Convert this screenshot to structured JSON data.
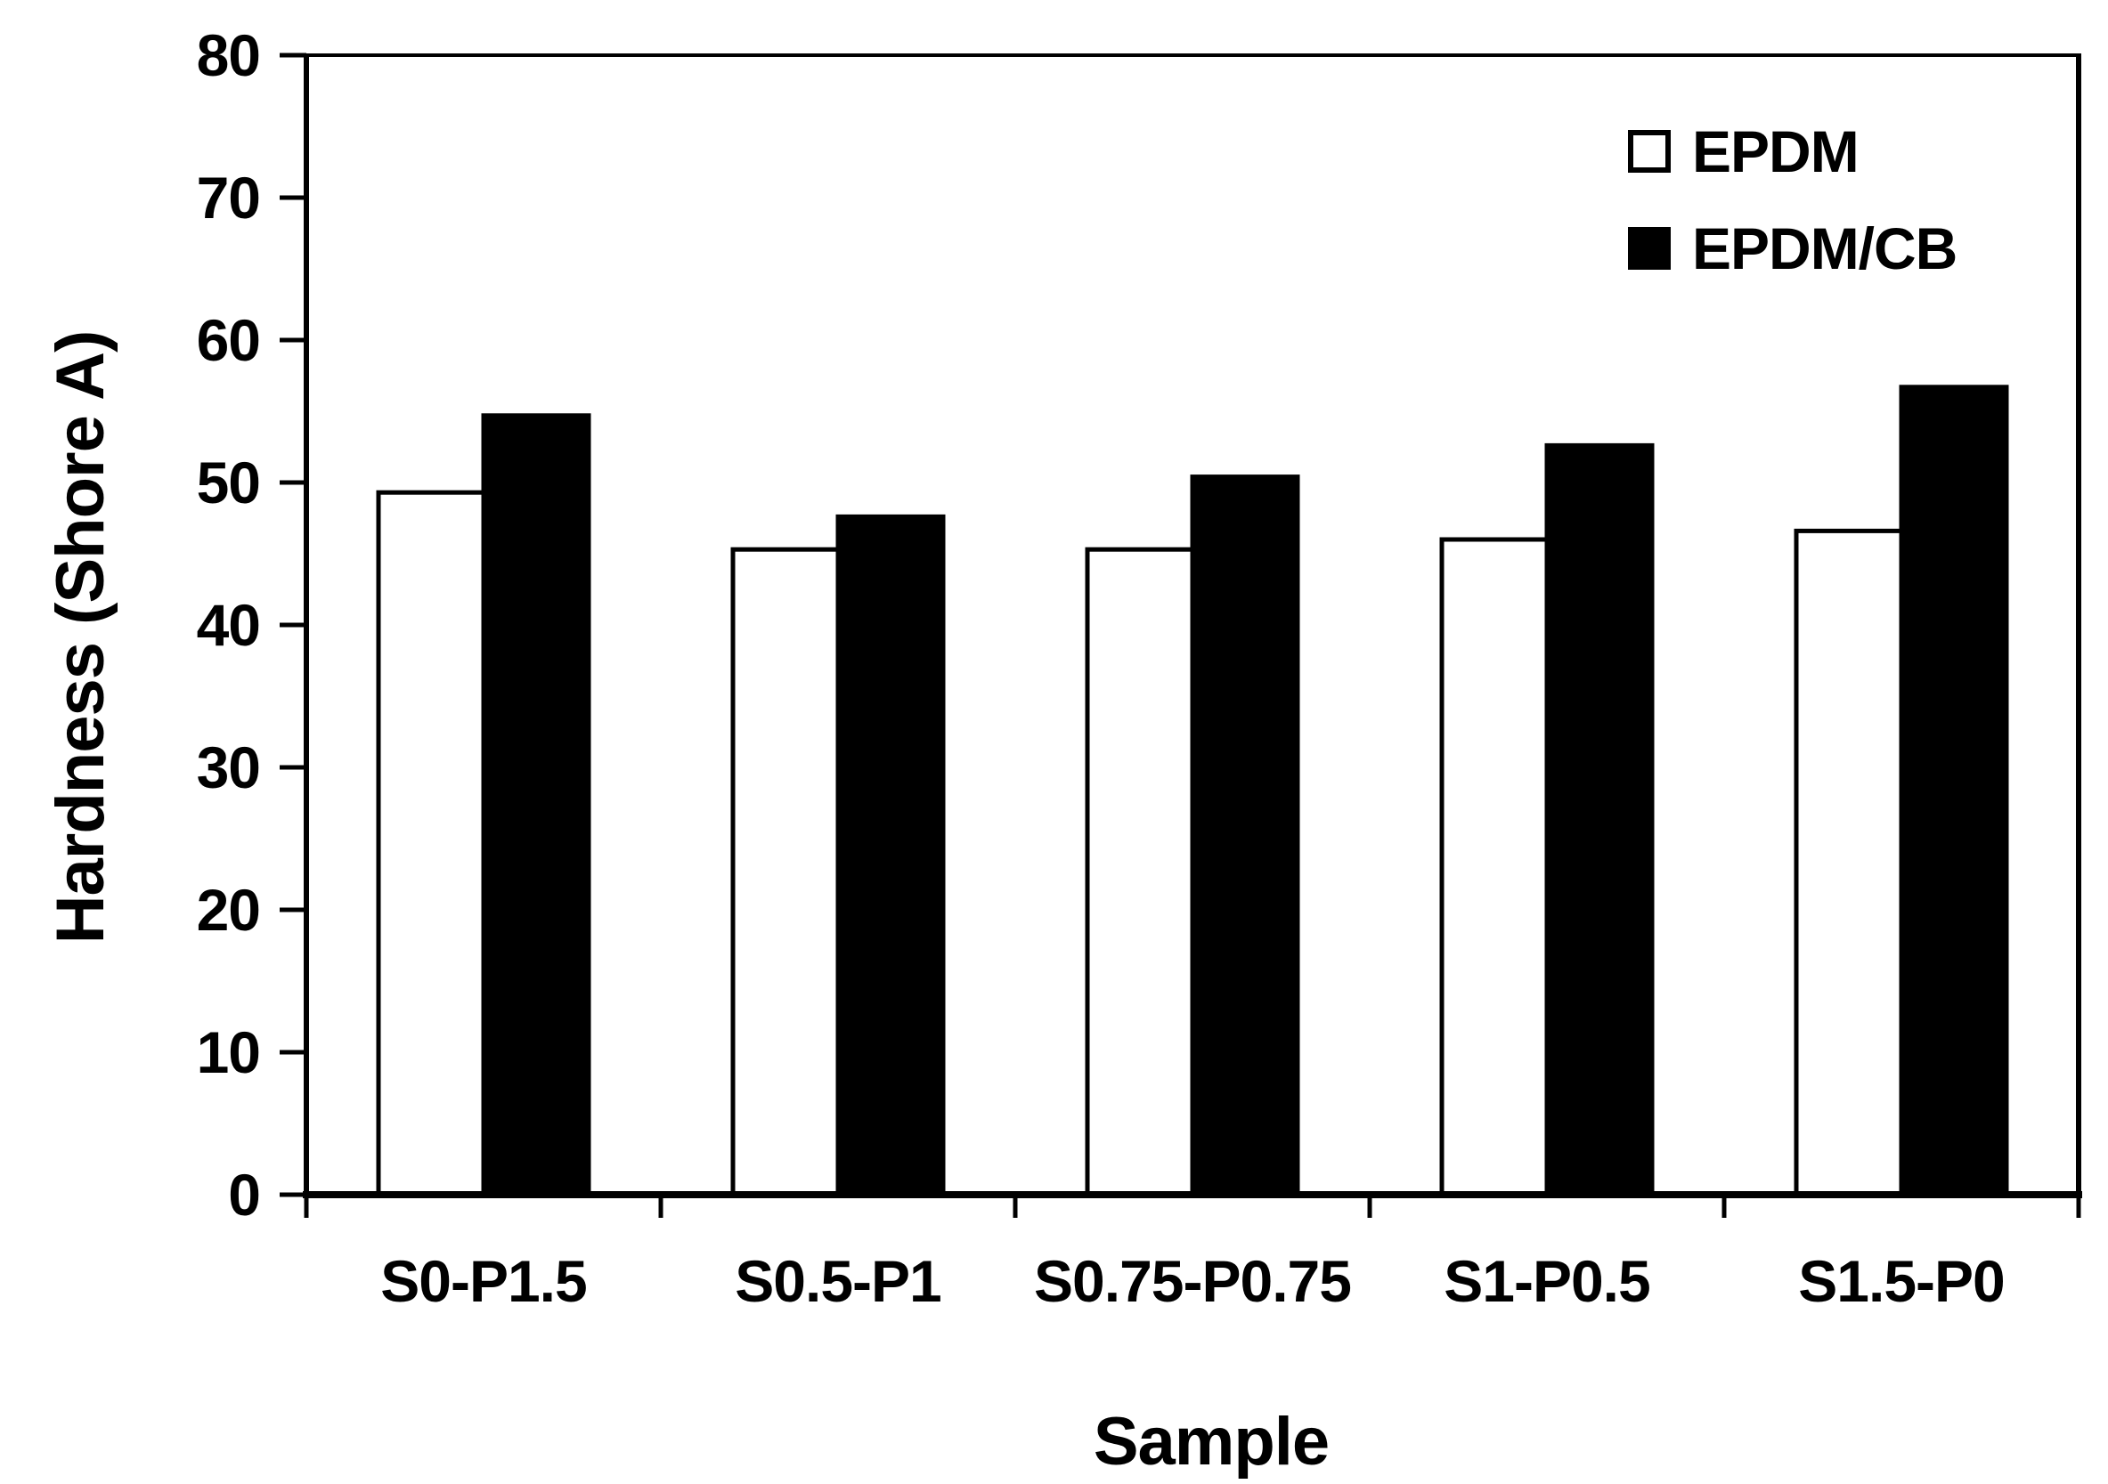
{
  "figure": {
    "background": "#ffffff",
    "foreground": "#000000"
  },
  "legend": {
    "position": "top-right",
    "items": [
      {
        "label": "EPDM",
        "swatch": "white-outlined-square"
      },
      {
        "label": "EPDM/CB",
        "swatch": "black-filled-square"
      }
    ]
  },
  "chart_data": {
    "type": "bar",
    "title": "",
    "categories": [
      "S0-P1.5",
      "S0.5-P1",
      "S0.75-P0.75",
      "S1-P0.5",
      "S1.5-P0"
    ],
    "series": [
      {
        "name": "EPDM",
        "fill": "#ffffff",
        "stroke": "#000000",
        "values": [
          49.3,
          45.3,
          45.3,
          46.0,
          46.6
        ]
      },
      {
        "name": "EPDM/CB",
        "fill": "#000000",
        "stroke": "#000000",
        "values": [
          54.7,
          47.6,
          50.4,
          52.6,
          56.7
        ]
      }
    ],
    "xlabel": "Sample",
    "ylabel": "Hardness (Shore A)",
    "ylim": [
      0,
      80
    ],
    "yticks": [
      0,
      10,
      20,
      30,
      40,
      50,
      60,
      70,
      80
    ],
    "grid": "off",
    "legend_position": "top-right",
    "bar_color_scheme": [
      "#ffffff",
      "#000000"
    ]
  }
}
